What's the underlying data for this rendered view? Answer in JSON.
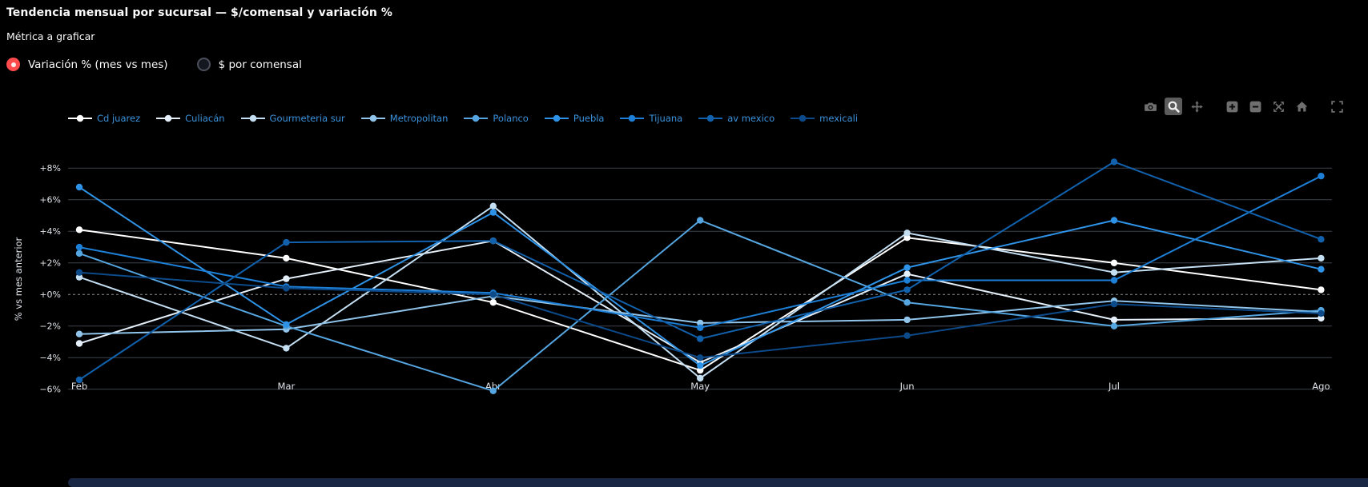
{
  "header": {
    "title": "Tendencia mensual por sucursal — $/comensal y variación %",
    "metric_label": "Métrica a graficar"
  },
  "radio": {
    "options": [
      {
        "label": "Variación % (mes vs mes)",
        "selected": true
      },
      {
        "label": "$ por comensal",
        "selected": false
      }
    ]
  },
  "modebar": {
    "buttons": [
      "download-plot-camera",
      "zoom",
      "pan",
      "zoom-in",
      "zoom-out",
      "autoscale",
      "reset-axes-home",
      "fullscreen"
    ],
    "active": "zoom"
  },
  "chart_data": {
    "type": "line",
    "title": "",
    "xlabel": "",
    "ylabel": "% vs mes anterior",
    "categories": [
      "Feb",
      "Mar",
      "Abr",
      "May",
      "Jun",
      "Jul",
      "Ago"
    ],
    "series": [
      {
        "name": "Cd juarez",
        "color": "#ffffff",
        "values": [
          4.1,
          2.3,
          -0.5,
          -4.8,
          3.6,
          2.0,
          0.3
        ]
      },
      {
        "name": "Culiacán",
        "color": "#e4eff9",
        "values": [
          -3.1,
          1.0,
          3.4,
          -4.3,
          1.3,
          -1.6,
          -1.5
        ]
      },
      {
        "name": "Gourmeteria sur",
        "color": "#c4def2",
        "values": [
          1.1,
          -3.4,
          5.6,
          -5.3,
          3.9,
          1.4,
          2.3
        ]
      },
      {
        "name": "Metropolitan",
        "color": "#90c4ea",
        "values": [
          -2.5,
          -2.2,
          -0.1,
          -1.8,
          -1.6,
          -0.4,
          -1.1
        ]
      },
      {
        "name": "Polanco",
        "color": "#55a6e0",
        "values": [
          2.6,
          -2.0,
          -6.1,
          4.7,
          -0.5,
          -2.0,
          -1.0
        ]
      },
      {
        "name": "Puebla",
        "color": "#2e93e6",
        "values": [
          6.8,
          -1.9,
          5.2,
          -4.5,
          1.7,
          4.7,
          1.6
        ]
      },
      {
        "name": "Tijuana",
        "color": "#1d7fd6",
        "values": [
          3.0,
          0.5,
          0.1,
          -2.1,
          0.9,
          0.9,
          7.5
        ]
      },
      {
        "name": "av mexico",
        "color": "#1161ad",
        "values": [
          -5.4,
          3.3,
          3.4,
          -2.8,
          0.3,
          8.4,
          3.5
        ]
      },
      {
        "name": "mexicali",
        "color": "#0c4a8a",
        "values": [
          1.4,
          0.4,
          0.0,
          -4.0,
          -2.6,
          -0.6,
          -1.2
        ]
      }
    ],
    "yticks": [
      {
        "value": -6,
        "label": "−6%"
      },
      {
        "value": -4,
        "label": "−4%"
      },
      {
        "value": -2,
        "label": "−2%"
      },
      {
        "value": 0,
        "label": "+0%"
      },
      {
        "value": 2,
        "label": "+2%"
      },
      {
        "value": 4,
        "label": "+4%"
      },
      {
        "value": 6,
        "label": "+6%"
      },
      {
        "value": 8,
        "label": "+8%"
      }
    ],
    "ylim": [
      -7,
      9
    ],
    "grid": true,
    "zero_line": "dashed",
    "legend_position": "top-left"
  },
  "colors": {
    "background": "#000000",
    "accent_red": "#ff4b4b",
    "legend_text": "#3a93dd",
    "axis_text": "#dfe3e8",
    "grid": "#3d434a",
    "zero_line": "#8f8f8f",
    "modebar_icon": "#6f6f6f",
    "modebar_active_icon": "#f2f2f2",
    "scrollbar": "#1a2744"
  }
}
